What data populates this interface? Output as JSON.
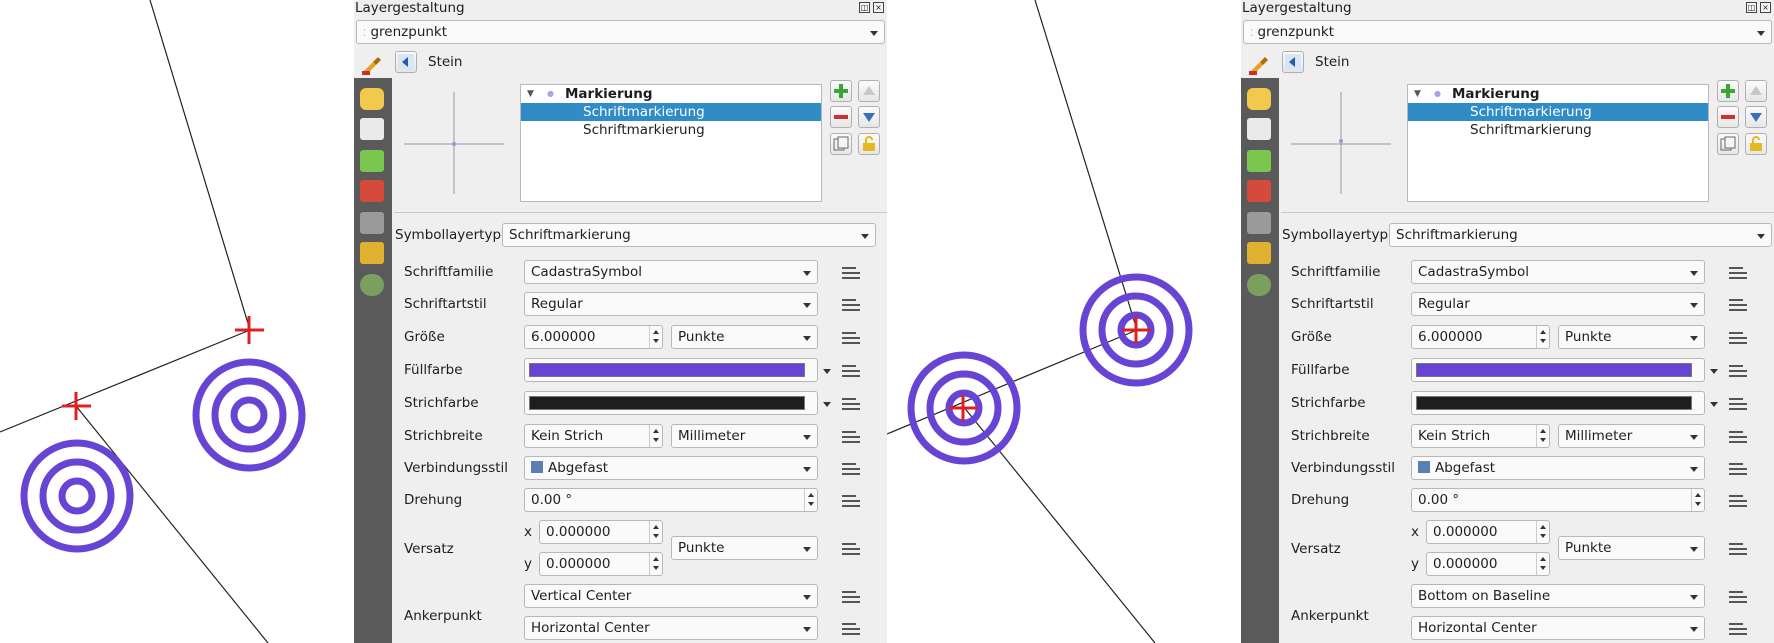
{
  "panels": [
    {
      "title": "Layergestaltung",
      "layer_combo": "grenzpunkt",
      "nav_label": "Stein",
      "tree": {
        "root": "Markierung",
        "items": [
          "Schriftmarkierung",
          "Schriftmarkierung"
        ]
      },
      "type_label": "Symbollayertyp",
      "type_value": "Schriftmarkierung",
      "font_family": {
        "label": "Schriftfamilie",
        "value": "CadastraSymbol"
      },
      "font_style": {
        "label": "Schriftartstil",
        "value": "Regular"
      },
      "size": {
        "label": "Größe",
        "value": "6.000000",
        "unit": "Punkte"
      },
      "fill": {
        "label": "Füllfarbe",
        "color": "#6744d4"
      },
      "stroke": {
        "label": "Strichfarbe",
        "color": "#1e1e1e"
      },
      "stroke_width": {
        "label": "Strichbreite",
        "value": "Kein Strich",
        "unit": "Millimeter"
      },
      "join_style": {
        "label": "Verbindungsstil",
        "value": "Abgefast"
      },
      "rotation": {
        "label": "Drehung",
        "value": "0.00 °"
      },
      "offset": {
        "label": "Versatz",
        "x_label": "x",
        "x": "0.000000",
        "y_label": "y",
        "y": "0.000000",
        "unit": "Punkte"
      },
      "anchor": {
        "label": "Ankerpunkt",
        "vertical": "Vertical Center",
        "horizontal": "Horizontal Center"
      }
    },
    {
      "title": "Layergestaltung",
      "layer_combo": "grenzpunkt",
      "nav_label": "Stein",
      "tree": {
        "root": "Markierung",
        "items": [
          "Schriftmarkierung",
          "Schriftmarkierung"
        ]
      },
      "type_label": "Symbollayertyp",
      "type_value": "Schriftmarkierung",
      "font_family": {
        "label": "Schriftfamilie",
        "value": "CadastraSymbol"
      },
      "font_style": {
        "label": "Schriftartstil",
        "value": "Regular"
      },
      "size": {
        "label": "Größe",
        "value": "6.000000",
        "unit": "Punkte"
      },
      "fill": {
        "label": "Füllfarbe",
        "color": "#6744d4"
      },
      "stroke": {
        "label": "Strichfarbe",
        "color": "#1e1e1e"
      },
      "stroke_width": {
        "label": "Strichbreite",
        "value": "Kein Strich",
        "unit": "Millimeter"
      },
      "join_style": {
        "label": "Verbindungsstil",
        "value": "Abgefast"
      },
      "rotation": {
        "label": "Drehung",
        "value": "0.00 °"
      },
      "offset": {
        "label": "Versatz",
        "x_label": "x",
        "x": "0.000000",
        "y_label": "y",
        "y": "0.000000",
        "unit": "Punkte"
      },
      "anchor": {
        "label": "Ankerpunkt",
        "vertical": "Bottom on Baseline",
        "horizontal": "Horizontal Center"
      }
    }
  ],
  "map_colors": {
    "symbol": "#6744d4",
    "cross": "#e02020",
    "line": "#222222"
  }
}
